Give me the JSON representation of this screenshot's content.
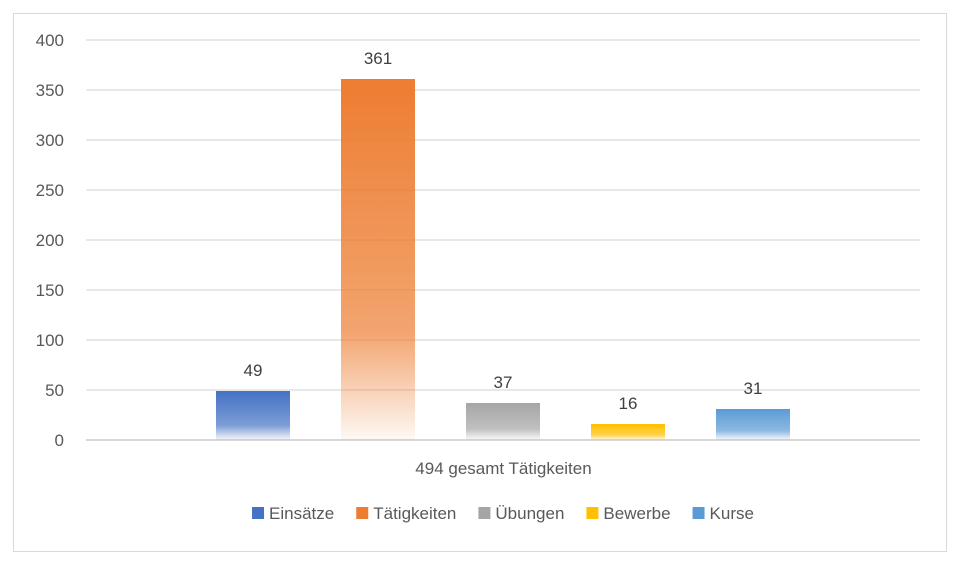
{
  "chart_data": {
    "type": "bar",
    "categories": [
      "494 gesamt Tätigkeiten"
    ],
    "series": [
      {
        "name": "Einsätze",
        "values": [
          49
        ],
        "color": "#4472c4"
      },
      {
        "name": "Tätigkeiten",
        "values": [
          361
        ],
        "color": "#ed7d31"
      },
      {
        "name": "Übungen",
        "values": [
          37
        ],
        "color": "#a5a5a5"
      },
      {
        "name": "Bewerbe",
        "values": [
          16
        ],
        "color": "#ffc000"
      },
      {
        "name": "Kurse",
        "values": [
          31
        ],
        "color": "#5b9bd5"
      }
    ],
    "yticks": [
      "0",
      "50",
      "100",
      "150",
      "200",
      "250",
      "300",
      "350",
      "400"
    ],
    "ylim": [
      0,
      400
    ],
    "grid": true,
    "legend": "bottom"
  }
}
